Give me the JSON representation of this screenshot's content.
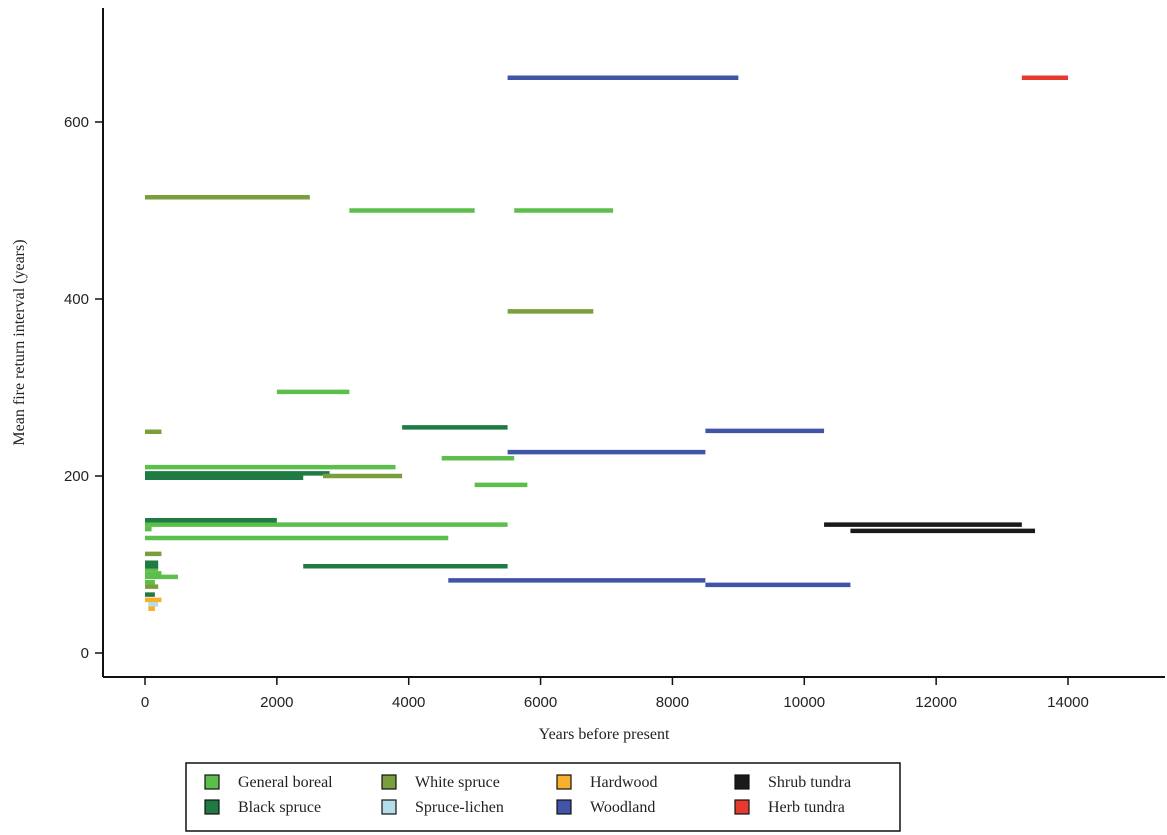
{
  "chart_data": {
    "type": "range-segments",
    "title": "",
    "xlabel": "Years before present",
    "ylabel": "Mean fire return interval (years)",
    "xlim": [
      -600,
      15600
    ],
    "ylim": [
      -30,
      730
    ],
    "x_ticks": [
      0,
      2000,
      4000,
      6000,
      8000,
      10000,
      12000,
      14000
    ],
    "y_ticks": [
      0,
      200,
      400,
      600
    ],
    "grid": false,
    "legend_position": "bottom-center",
    "series": [
      {
        "name": "General boreal",
        "color": "#5cbf4c",
        "segments": [
          {
            "x_start": 3100,
            "x_end": 5000,
            "y": 500
          },
          {
            "x_start": 5600,
            "x_end": 7100,
            "y": 500
          },
          {
            "x_start": 2000,
            "x_end": 3100,
            "y": 295
          },
          {
            "x_start": 4500,
            "x_end": 5600,
            "y": 220
          },
          {
            "x_start": 0,
            "x_end": 3800,
            "y": 210
          },
          {
            "x_start": 5000,
            "x_end": 5800,
            "y": 190
          },
          {
            "x_start": 0,
            "x_end": 5500,
            "y": 145
          },
          {
            "x_start": 0,
            "x_end": 100,
            "y": 140
          },
          {
            "x_start": 0,
            "x_end": 4600,
            "y": 130
          },
          {
            "x_start": 0,
            "x_end": 200,
            "y": 95
          },
          {
            "x_start": 0,
            "x_end": 250,
            "y": 90
          },
          {
            "x_start": 0,
            "x_end": 500,
            "y": 86
          },
          {
            "x_start": 0,
            "x_end": 150,
            "y": 80
          }
        ]
      },
      {
        "name": "Black spruce",
        "color": "#1f7a44",
        "segments": [
          {
            "x_start": 3900,
            "x_end": 5500,
            "y": 255
          },
          {
            "x_start": 0,
            "x_end": 2800,
            "y": 203
          },
          {
            "x_start": 0,
            "x_end": 2400,
            "y": 198
          },
          {
            "x_start": 0,
            "x_end": 2000,
            "y": 150
          },
          {
            "x_start": 2400,
            "x_end": 5500,
            "y": 98
          },
          {
            "x_start": 0,
            "x_end": 200,
            "y": 102
          },
          {
            "x_start": 0,
            "x_end": 200,
            "y": 98
          },
          {
            "x_start": 0,
            "x_end": 150,
            "y": 66
          }
        ]
      },
      {
        "name": "White spruce",
        "color": "#7a9e3c",
        "segments": [
          {
            "x_start": 0,
            "x_end": 2500,
            "y": 515
          },
          {
            "x_start": 5500,
            "x_end": 6800,
            "y": 386
          },
          {
            "x_start": 0,
            "x_end": 250,
            "y": 250
          },
          {
            "x_start": 2700,
            "x_end": 3900,
            "y": 200
          },
          {
            "x_start": 0,
            "x_end": 250,
            "y": 112
          },
          {
            "x_start": 0,
            "x_end": 200,
            "y": 75
          }
        ]
      },
      {
        "name": "Spruce-lichen",
        "color": "#b5dcea",
        "segments": [
          {
            "x_start": 50,
            "x_end": 200,
            "y": 55
          }
        ]
      },
      {
        "name": "Hardwood",
        "color": "#f6b02c",
        "segments": [
          {
            "x_start": 0,
            "x_end": 250,
            "y": 60
          },
          {
            "x_start": 50,
            "x_end": 150,
            "y": 50
          }
        ]
      },
      {
        "name": "Woodland",
        "color": "#4055a8",
        "segments": [
          {
            "x_start": 5500,
            "x_end": 9000,
            "y": 650
          },
          {
            "x_start": 8500,
            "x_end": 10300,
            "y": 251
          },
          {
            "x_start": 5500,
            "x_end": 8500,
            "y": 227
          },
          {
            "x_start": 4600,
            "x_end": 8500,
            "y": 82
          },
          {
            "x_start": 8500,
            "x_end": 10700,
            "y": 77
          }
        ]
      },
      {
        "name": "Shrub tundra",
        "color": "#1a1a1a",
        "segments": [
          {
            "x_start": 10300,
            "x_end": 13300,
            "y": 145
          },
          {
            "x_start": 10700,
            "x_end": 13500,
            "y": 138
          }
        ]
      },
      {
        "name": "Herb tundra",
        "color": "#e53a2d",
        "segments": [
          {
            "x_start": 13300,
            "x_end": 14000,
            "y": 650
          }
        ]
      }
    ]
  }
}
